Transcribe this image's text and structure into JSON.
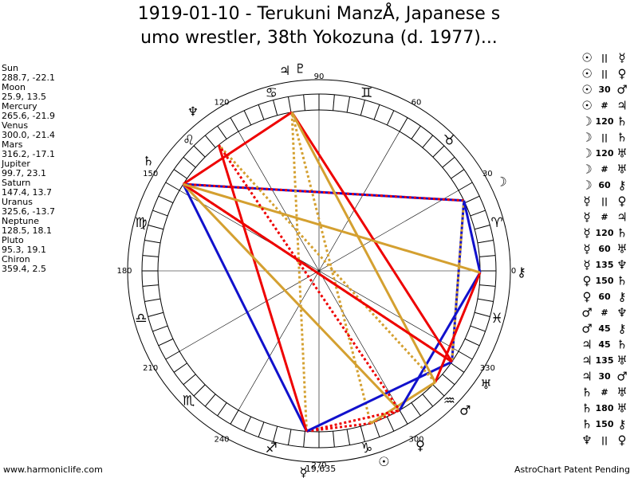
{
  "header": {
    "title_line1": "1919-01-10 - Terukuni ManzÅ, Japanese s",
    "title_line2": "umo wrestler, 38th Yokozuna (d. 1977)..."
  },
  "planets": [
    {
      "name": "Sun",
      "coords": "288.7, -22.1",
      "glyph": "☉"
    },
    {
      "name": "Moon",
      "coords": "25.9, 13.5",
      "glyph": "☽"
    },
    {
      "name": "Mercury",
      "coords": "265.6, -21.9",
      "glyph": "☿"
    },
    {
      "name": "Venus",
      "coords": "300.0, -21.4",
      "glyph": "♀"
    },
    {
      "name": "Mars",
      "coords": "316.2, -17.1",
      "glyph": "♂"
    },
    {
      "name": "Jupiter",
      "coords": "99.7, 23.1",
      "glyph": "♃"
    },
    {
      "name": "Saturn",
      "coords": "147.4, 13.7",
      "glyph": "♄"
    },
    {
      "name": "Uranus",
      "coords": "325.6, -13.7",
      "glyph": "♅"
    },
    {
      "name": "Neptune",
      "coords": "128.5, 18.1",
      "glyph": "♆"
    },
    {
      "name": "Pluto",
      "coords": "95.3, 19.1",
      "glyph": "♇"
    },
    {
      "name": "Chiron",
      "coords": "359.4, 2.5",
      "glyph": "⚷"
    }
  ],
  "aspects": [
    {
      "a": "☉",
      "aspect": "||",
      "b": "☿"
    },
    {
      "a": "☉",
      "aspect": "||",
      "b": "♀"
    },
    {
      "a": "☉",
      "aspect": "30",
      "b": "♂"
    },
    {
      "a": "☉",
      "aspect": "#",
      "b": "♃"
    },
    {
      "a": "☽",
      "aspect": "120",
      "b": "♄"
    },
    {
      "a": "☽",
      "aspect": "||",
      "b": "♄"
    },
    {
      "a": "☽",
      "aspect": "120",
      "b": "♅"
    },
    {
      "a": "☽",
      "aspect": "#",
      "b": "♅"
    },
    {
      "a": "☽",
      "aspect": "60",
      "b": "⚷"
    },
    {
      "a": "☿",
      "aspect": "||",
      "b": "♀"
    },
    {
      "a": "☿",
      "aspect": "#",
      "b": "♃"
    },
    {
      "a": "☿",
      "aspect": "120",
      "b": "♄"
    },
    {
      "a": "☿",
      "aspect": "60",
      "b": "♅"
    },
    {
      "a": "☿",
      "aspect": "135",
      "b": "♆"
    },
    {
      "a": "♀",
      "aspect": "150",
      "b": "♄"
    },
    {
      "a": "♀",
      "aspect": "60",
      "b": "⚷"
    },
    {
      "a": "♂",
      "aspect": "#",
      "b": "♆"
    },
    {
      "a": "♂",
      "aspect": "45",
      "b": "⚷"
    },
    {
      "a": "♃",
      "aspect": "45",
      "b": "♄"
    },
    {
      "a": "♃",
      "aspect": "135",
      "b": "♅"
    },
    {
      "a": "♃",
      "aspect": "30",
      "b": "♂"
    },
    {
      "a": "♄",
      "aspect": "#",
      "b": "♅"
    },
    {
      "a": "♄",
      "aspect": "180",
      "b": "♅"
    },
    {
      "a": "♄",
      "aspect": "150",
      "b": "⚷"
    },
    {
      "a": "♆",
      "aspect": "||",
      "b": "♀"
    }
  ],
  "wheel": {
    "degree_labels": [
      0,
      30,
      60,
      90,
      120,
      150,
      180,
      210,
      240,
      270,
      300,
      330
    ],
    "signs": [
      "♈",
      "♉",
      "♊",
      "♋",
      "♌",
      "♍",
      "♎",
      "♏",
      "♐",
      "♑",
      "♒",
      "♓"
    ],
    "bottom_value": "-19,635"
  },
  "footer": {
    "left": "www.harmoniclife.com",
    "right": "AstroChart Patent Pending"
  }
}
